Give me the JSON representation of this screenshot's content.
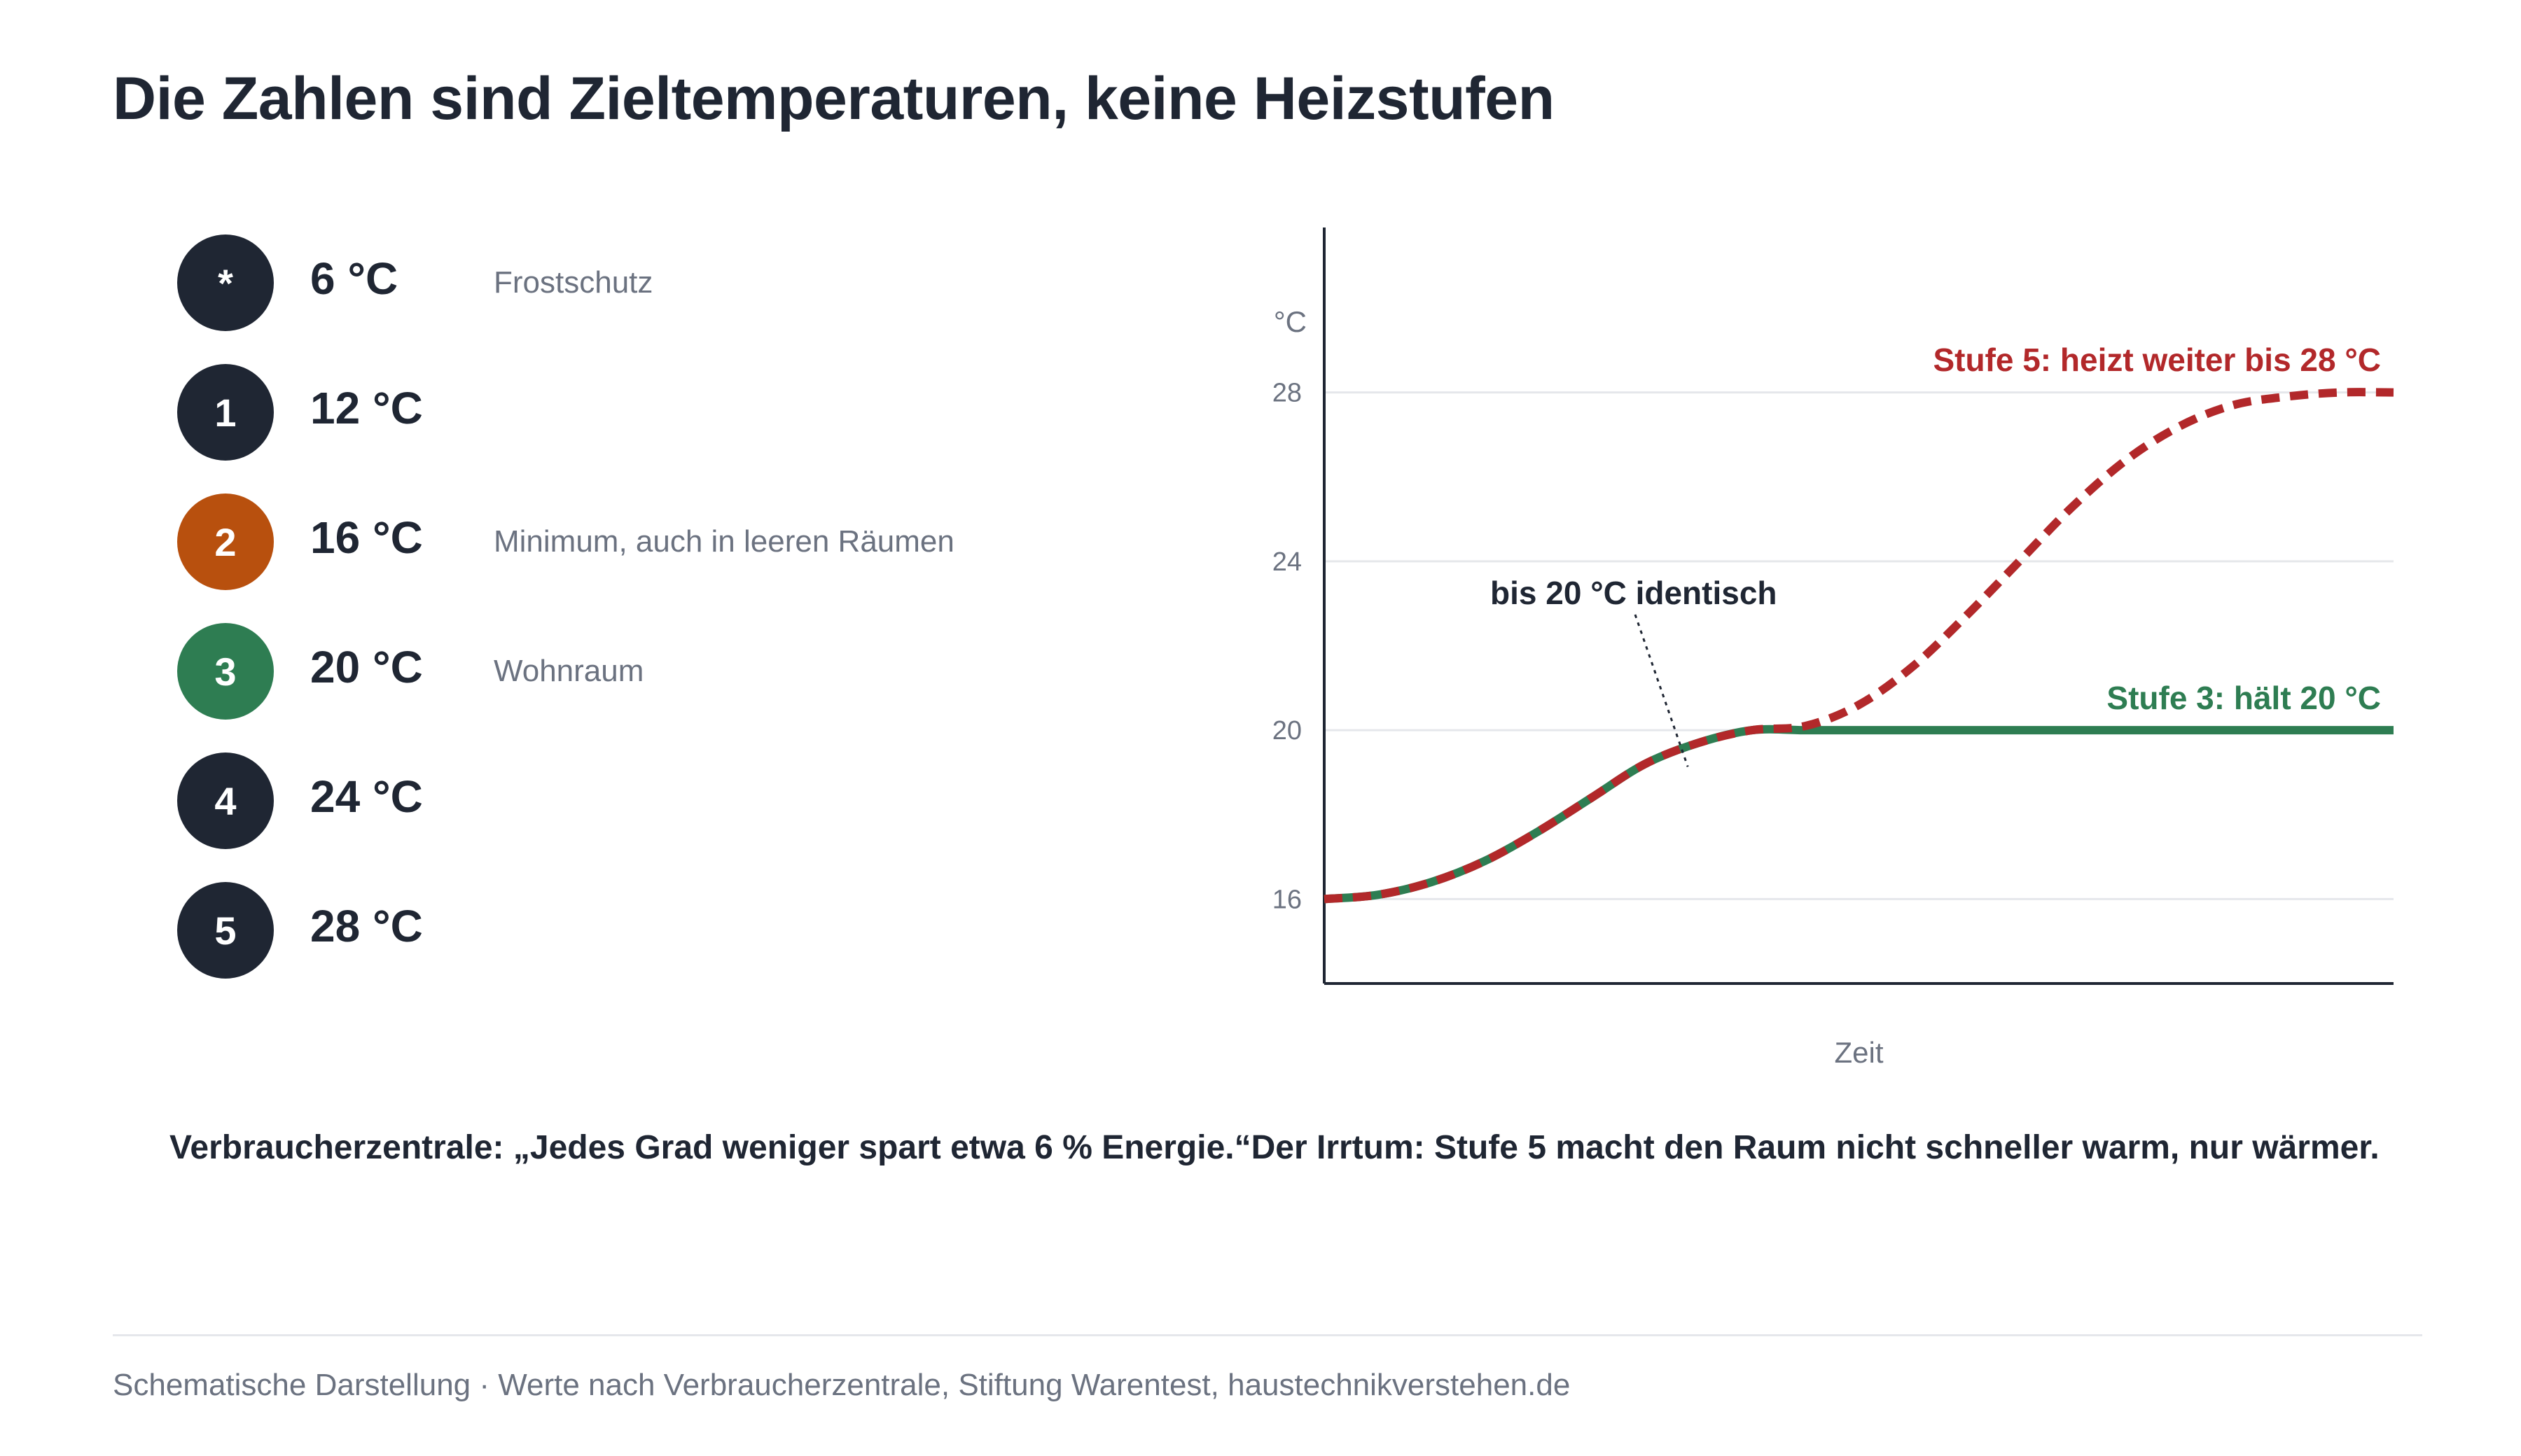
{
  "title": "Die Zahlen sind Zieltemperaturen, keine Heizstufen",
  "stufen": [
    {
      "symbol": "*",
      "temp": "6 °C",
      "note": "Frostschutz",
      "color": "#1f2633"
    },
    {
      "symbol": "1",
      "temp": "12 °C",
      "note": "",
      "color": "#1f2633"
    },
    {
      "symbol": "2",
      "temp": "16 °C",
      "note": "Minimum, auch in leeren Räumen",
      "color": "#b8500e"
    },
    {
      "symbol": "3",
      "temp": "20 °C",
      "note": "Wohnraum",
      "color": "#2e7d52"
    },
    {
      "symbol": "4",
      "temp": "24 °C",
      "note": "",
      "color": "#1f2633"
    },
    {
      "symbol": "5",
      "temp": "28 °C",
      "note": "",
      "color": "#1f2633"
    }
  ],
  "chart_data": {
    "type": "line",
    "ylabel": "°C",
    "xlabel": "Zeit",
    "ylim": [
      14,
      30
    ],
    "yticks": [
      16,
      20,
      24,
      28
    ],
    "grid": true,
    "x": [
      0,
      0.05,
      0.1,
      0.15,
      0.2,
      0.25,
      0.3,
      0.35,
      0.4,
      0.45,
      0.5,
      0.55,
      0.6,
      0.65,
      0.7,
      0.75,
      0.8,
      0.85,
      0.9,
      0.95,
      1.0
    ],
    "series": [
      {
        "name": "Stufe 3: hält 20 °C",
        "color": "#2e7d52",
        "style": "solid",
        "values": [
          16,
          16.1,
          16.4,
          16.9,
          17.6,
          18.4,
          19.2,
          19.7,
          20,
          20,
          20,
          20,
          20,
          20,
          20,
          20,
          20,
          20,
          20,
          20,
          20
        ]
      },
      {
        "name": "Stufe 5: heizt weiter bis 28 °C",
        "color": "#b2282a",
        "style": "dashed",
        "values": [
          16,
          16.1,
          16.4,
          16.9,
          17.6,
          18.4,
          19.2,
          19.7,
          20,
          20.1,
          20.6,
          21.5,
          22.7,
          24.0,
          25.3,
          26.4,
          27.2,
          27.7,
          27.9,
          28,
          28
        ]
      }
    ],
    "annotations": [
      {
        "text": "bis 20 °C identisch",
        "x": 0.34,
        "y": 19.3
      }
    ]
  },
  "quotes": {
    "left": "Verbraucherzentrale: „Jedes Grad weniger spart etwa 6 % Energie.“",
    "right": "Der Irrtum: Stufe 5 macht den Raum nicht schneller warm, nur wärmer."
  },
  "footer": "Schematische Darstellung · Werte nach Verbraucherzentrale, Stiftung Warentest, haustechnikverstehen.de"
}
